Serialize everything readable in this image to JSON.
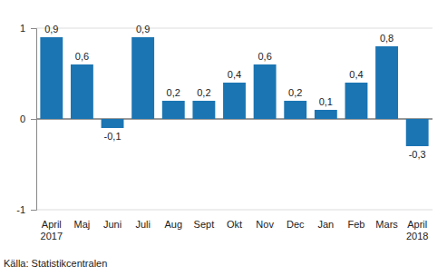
{
  "chart_data": {
    "type": "bar",
    "categories": [
      "April 2017",
      "Maj",
      "Juni",
      "Juli",
      "Aug",
      "Sept",
      "Okt",
      "Nov",
      "Dec",
      "Jan",
      "Feb",
      "Mars",
      "April 2018"
    ],
    "values": [
      0.9,
      0.6,
      -0.1,
      0.9,
      0.2,
      0.2,
      0.4,
      0.6,
      0.2,
      0.1,
      0.4,
      0.8,
      -0.3
    ],
    "value_labels": [
      "0,9",
      "0,6",
      "-0,1",
      "0,9",
      "0,2",
      "0,2",
      "0,4",
      "0,6",
      "0,2",
      "0,1",
      "0,4",
      "0,8",
      "-0,3"
    ],
    "data_labels": true,
    "color": "#1b75b3",
    "ylim": [
      -1,
      1
    ],
    "yticks": [
      -1,
      0,
      1
    ],
    "grid": true,
    "source": "Källa: Statistikcentralen"
  }
}
